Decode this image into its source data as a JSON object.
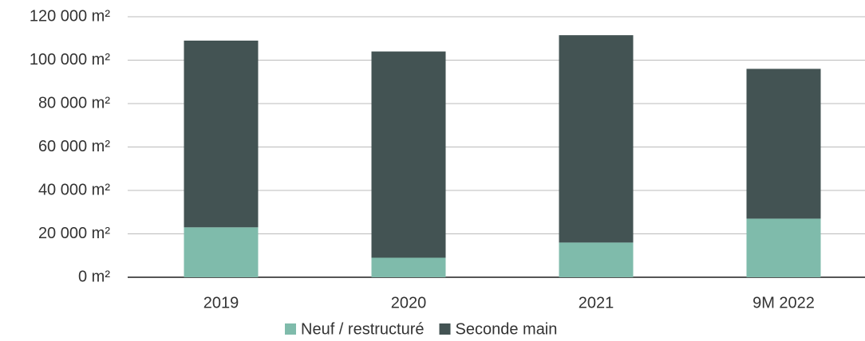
{
  "chart_data": {
    "type": "stacked_bar",
    "categories": [
      "2019",
      "2020",
      "2021",
      "9M 2022"
    ],
    "series": [
      {
        "name": "Neuf / restructuré",
        "color": "#7fbbab",
        "values": [
          23000,
          9000,
          16000,
          27000
        ]
      },
      {
        "name": "Seconde main",
        "color": "#435353",
        "values": [
          86000,
          95000,
          95500,
          69000
        ]
      }
    ],
    "ylim": [
      0,
      120000
    ],
    "yticks": [
      {
        "value": 0,
        "label": "0 m²"
      },
      {
        "value": 20000,
        "label": "20 000 m²"
      },
      {
        "value": 40000,
        "label": "40 000 m²"
      },
      {
        "value": 60000,
        "label": "60 000 m²"
      },
      {
        "value": 80000,
        "label": "80 000 m²"
      },
      {
        "value": 100000,
        "label": "100 000 m²"
      },
      {
        "value": 120000,
        "label": "120 000 m²"
      }
    ],
    "grid": true,
    "legend": "bottom"
  }
}
